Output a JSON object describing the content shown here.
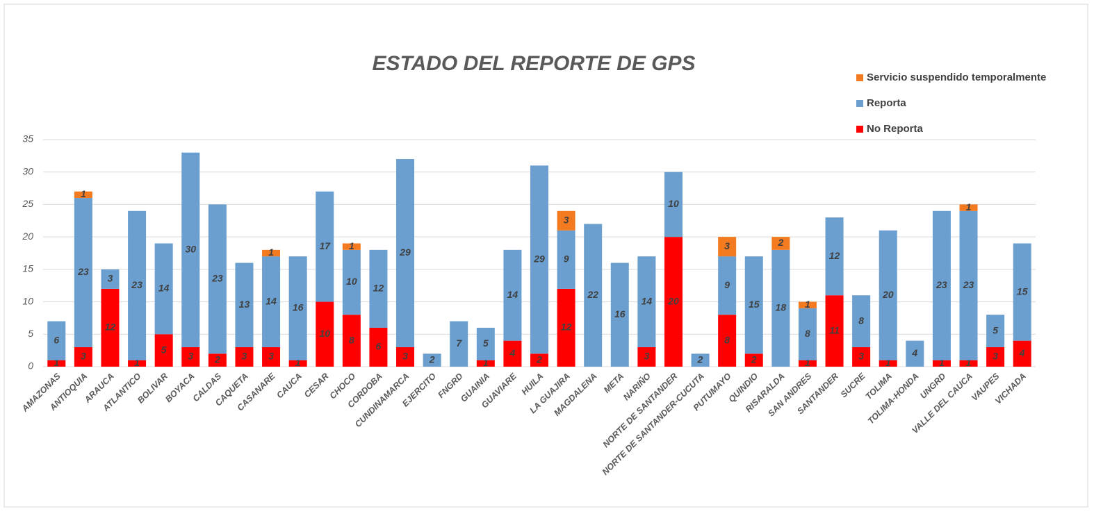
{
  "chart_data": {
    "type": "stacked_bar",
    "title": "ESTADO DEL REPORTE DE GPS",
    "categories": [
      "AMAZONAS",
      "ANTIOQUIA",
      "ARAUCA",
      "ATLANTICO",
      "BOLIVAR",
      "BOYACA",
      "CALDAS",
      "CAQUETA",
      "CASANARE",
      "CAUCA",
      "CESAR",
      "CHOCO",
      "CORDOBA",
      "CUNDINAMARCA",
      "EJERCITO",
      "FNGRD",
      "GUAINIA",
      "GUAVIARE",
      "HUILA",
      "LA GUAJIRA",
      "MAGDALENA",
      "META",
      "NARIÑO",
      "NORTE DE SANTANDER",
      "NORTE DE SANTANDER-CUCUTA",
      "PUTUMAYO",
      "QUINDIO",
      "RISARALDA",
      "SAN ANDRES",
      "SANTANDER",
      "SUCRE",
      "TOLIMA",
      "TOLIMA-HONDA",
      "UNGRD",
      "VALLE DEL CAUCA",
      "VAUPES",
      "VICHADA"
    ],
    "series": [
      {
        "name": "No Reporta",
        "color": "#ff0000",
        "values": [
          1,
          3,
          12,
          1,
          5,
          3,
          2,
          3,
          3,
          1,
          10,
          8,
          6,
          3,
          null,
          null,
          1,
          4,
          2,
          12,
          null,
          null,
          3,
          20,
          null,
          8,
          2,
          null,
          1,
          11,
          3,
          1,
          null,
          1,
          1,
          3,
          4
        ]
      },
      {
        "name": "Reporta",
        "color": "#6a9fd0",
        "values": [
          6,
          23,
          3,
          23,
          14,
          30,
          23,
          13,
          14,
          16,
          17,
          10,
          12,
          29,
          2,
          7,
          5,
          14,
          29,
          9,
          22,
          16,
          14,
          10,
          2,
          9,
          15,
          18,
          8,
          12,
          8,
          20,
          4,
          23,
          23,
          5,
          15
        ]
      },
      {
        "name": "Servicio suspendido temporalmente",
        "color": "#f47a20",
        "values": [
          null,
          1,
          null,
          null,
          null,
          null,
          null,
          null,
          1,
          null,
          null,
          1,
          null,
          null,
          null,
          null,
          null,
          null,
          null,
          3,
          null,
          null,
          null,
          null,
          null,
          3,
          null,
          2,
          1,
          null,
          null,
          null,
          null,
          null,
          1,
          null,
          null
        ]
      }
    ],
    "ylim": [
      0,
      35
    ],
    "yticks": [
      0,
      5,
      10,
      15,
      20,
      25,
      30,
      35
    ],
    "grid": true,
    "legend": "top-right"
  }
}
